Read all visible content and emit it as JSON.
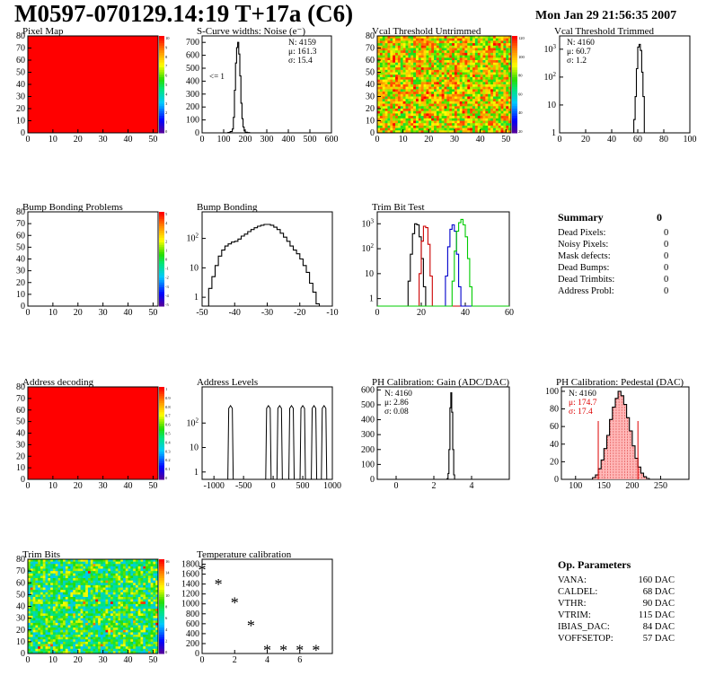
{
  "header": {
    "title": "M0597-070129.14:19 T+17a (C6)",
    "date": "Mon Jan 29 21:56:35 2007"
  },
  "colors": {
    "red": "#ff0000",
    "pedestal_fill": "#ffb0b0"
  },
  "chart_data": [
    {
      "id": "pixel-map",
      "type": "heatmap",
      "title": "Pixel Map",
      "xlim": [
        0,
        52
      ],
      "ylim": [
        0,
        80
      ],
      "xticks": [
        0,
        10,
        20,
        30,
        40,
        50
      ],
      "yticks": [
        0,
        10,
        20,
        30,
        40,
        50,
        60,
        70,
        80
      ],
      "fill": "uniform",
      "palette_max": 10,
      "palette_labels": [
        "10",
        "9",
        "8",
        "7",
        "6",
        "5",
        "4",
        "3",
        "2",
        "1",
        "0"
      ]
    },
    {
      "id": "scurve-noise",
      "type": "line",
      "title": "S-Curve widths: Noise (e⁻)",
      "xlim": [
        0,
        600
      ],
      "ylim": [
        0,
        750
      ],
      "ylog": false,
      "xticks": [
        0,
        100,
        200,
        300,
        400,
        500,
        600
      ],
      "yticks": [
        0,
        100,
        200,
        300,
        400,
        500,
        600,
        700
      ],
      "stats": [
        "N: 4159",
        "μ: 161.3",
        "σ: 15.4"
      ],
      "annotation": "<= 1",
      "series": [
        {
          "x": [
            0,
            110,
            120,
            130,
            140,
            145,
            150,
            155,
            160,
            165,
            170,
            175,
            180,
            185,
            190,
            195,
            200,
            210,
            220,
            600
          ],
          "values": [
            0,
            0,
            3,
            10,
            30,
            120,
            330,
            540,
            660,
            700,
            610,
            440,
            230,
            110,
            45,
            15,
            5,
            2,
            0,
            0
          ]
        }
      ]
    },
    {
      "id": "vcal-untrimmed",
      "type": "heatmap",
      "title": "Vcal Threshold Untrimmed",
      "xlim": [
        0,
        52
      ],
      "ylim": [
        0,
        80
      ],
      "xticks": [
        0,
        10,
        20,
        30,
        40,
        50
      ],
      "yticks": [
        0,
        10,
        20,
        30,
        40,
        50,
        60,
        70,
        80
      ],
      "fill": "noisy-high",
      "palette_max": 120,
      "palette_labels": [
        "120",
        "100",
        "80",
        "60",
        "40",
        "20"
      ]
    },
    {
      "id": "vcal-trimmed",
      "type": "line",
      "title": "Vcal Threshold Trimmed",
      "xlim": [
        0,
        100
      ],
      "ylim": [
        1,
        3000
      ],
      "ylog": true,
      "xticks": [
        0,
        20,
        40,
        60,
        80,
        100
      ],
      "yticks": [
        1,
        10,
        100,
        1000
      ],
      "stats": [
        "N: 4160",
        "μ: 60.7",
        "σ: 1.2"
      ],
      "series": [
        {
          "x": [
            0,
            55,
            57,
            58,
            59,
            60,
            61,
            62,
            63,
            64,
            65,
            100
          ],
          "values": [
            1,
            1,
            3,
            20,
            200,
            1200,
            1500,
            900,
            150,
            20,
            1,
            1
          ]
        }
      ]
    },
    {
      "id": "bump-bonding-problems",
      "type": "heatmap",
      "title": "Bump Bonding Problems",
      "xlim": [
        0,
        52
      ],
      "ylim": [
        0,
        80
      ],
      "xticks": [
        0,
        10,
        20,
        30,
        40,
        50
      ],
      "yticks": [
        0,
        10,
        20,
        30,
        40,
        50,
        60,
        70,
        80
      ],
      "fill": "empty",
      "palette_max": 5,
      "palette_labels": [
        "5",
        "4",
        "3",
        "2",
        "1",
        "0",
        "-1",
        "-2",
        "-3",
        "-4",
        "-5"
      ]
    },
    {
      "id": "bump-bonding",
      "type": "line",
      "title": "Bump Bonding",
      "xlim": [
        -50,
        -10
      ],
      "ylim": [
        0.5,
        800
      ],
      "ylog": true,
      "xticks": [
        -50,
        -40,
        -30,
        -20,
        -10
      ],
      "yticks": [
        1,
        10,
        100
      ],
      "series": [
        {
          "x": [
            -49,
            -48,
            -47,
            -46,
            -45,
            -44,
            -43,
            -42,
            -41,
            -40,
            -39,
            -38,
            -37,
            -36,
            -35,
            -34,
            -33,
            -32,
            -31,
            -30,
            -29,
            -28,
            -27,
            -26,
            -25,
            -24,
            -23,
            -22,
            -21,
            -20,
            -19,
            -18,
            -17,
            -16,
            -15,
            -14
          ],
          "values": [
            0.5,
            2,
            5,
            12,
            25,
            40,
            55,
            65,
            75,
            80,
            95,
            120,
            140,
            170,
            200,
            230,
            260,
            280,
            300,
            300,
            280,
            240,
            200,
            150,
            110,
            80,
            55,
            40,
            30,
            20,
            12,
            7,
            3,
            1.5,
            0.6,
            0.5
          ]
        }
      ]
    },
    {
      "id": "trim-bit-test",
      "type": "line",
      "title": "Trim Bit Test",
      "xlim": [
        0,
        60
      ],
      "ylim": [
        0.5,
        3000
      ],
      "ylog": true,
      "xticks": [
        0,
        20,
        40,
        60
      ],
      "yticks": [
        1,
        10,
        100,
        1000
      ],
      "series": [
        {
          "color": "#000000",
          "x": [
            0,
            13,
            14,
            15,
            16,
            17,
            18,
            19,
            20,
            21,
            22,
            60
          ],
          "values": [
            0.5,
            0.5,
            5,
            60,
            400,
            1000,
            900,
            300,
            40,
            3,
            0.5,
            0.5
          ]
        },
        {
          "color": "#cc0000",
          "x": [
            0,
            18,
            19,
            20,
            21,
            22,
            23,
            24,
            25,
            60
          ],
          "values": [
            0.5,
            0.5,
            10,
            200,
            800,
            700,
            150,
            8,
            0.5,
            0.5
          ]
        },
        {
          "color": "#0000cc",
          "x": [
            0,
            30,
            31,
            32,
            33,
            34,
            35,
            36,
            37,
            38,
            60
          ],
          "values": [
            0.5,
            0.5,
            8,
            120,
            600,
            900,
            500,
            60,
            3,
            0.5,
            0.5
          ]
        },
        {
          "color": "#00cc00",
          "x": [
            0,
            33,
            34,
            35,
            36,
            37,
            38,
            39,
            40,
            41,
            42,
            43,
            60
          ],
          "values": [
            0.5,
            0.5,
            5,
            80,
            500,
            1100,
            1500,
            900,
            300,
            40,
            3,
            0.5,
            0.5
          ]
        }
      ]
    },
    {
      "id": "address-decoding",
      "type": "heatmap",
      "title": "Address decoding",
      "xlim": [
        0,
        52
      ],
      "ylim": [
        0,
        80
      ],
      "xticks": [
        0,
        10,
        20,
        30,
        40,
        50
      ],
      "yticks": [
        0,
        10,
        20,
        30,
        40,
        50,
        60,
        70,
        80
      ],
      "fill": "uniform",
      "palette_max": 1,
      "palette_labels": [
        "1",
        "0.9",
        "0.8",
        "0.7",
        "0.6",
        "0.5",
        "0.4",
        "0.3",
        "0.2",
        "0.1",
        "0"
      ]
    },
    {
      "id": "address-levels",
      "type": "line",
      "title": "Address Levels",
      "xlim": [
        -1200,
        1000
      ],
      "ylim": [
        0.5,
        3000
      ],
      "ylog": true,
      "xticks": [
        -1000,
        -500,
        0,
        500,
        1000
      ],
      "yticks": [
        1,
        10,
        100
      ],
      "peaks_x": [
        -720,
        -80,
        110,
        310,
        500,
        690,
        860
      ],
      "peak_height": 400
    },
    {
      "id": "ph-gain",
      "type": "line",
      "title": "PH Calibration: Gain (ADC/DAC)",
      "xlim": [
        -1,
        6
      ],
      "ylim": [
        0,
        620
      ],
      "ylog": false,
      "xticks": [
        0,
        2,
        4
      ],
      "yticks": [
        0,
        100,
        200,
        300,
        400,
        500,
        600
      ],
      "stats": [
        "N: 4160",
        "μ: 2.86",
        "σ: 0.08"
      ],
      "series": [
        {
          "x": [
            -1,
            2.6,
            2.7,
            2.75,
            2.8,
            2.85,
            2.9,
            2.95,
            3.0,
            3.05,
            3.1,
            6
          ],
          "values": [
            0,
            0,
            5,
            40,
            200,
            480,
            580,
            450,
            200,
            30,
            0,
            0
          ]
        }
      ]
    },
    {
      "id": "ph-pedestal",
      "type": "line",
      "title": "PH Calibration: Pedestal (DAC)",
      "xlim": [
        75,
        300
      ],
      "ylim": [
        0,
        105
      ],
      "ylog": false,
      "xticks": [
        100,
        150,
        200,
        250
      ],
      "yticks": [
        0,
        20,
        40,
        60,
        80,
        100
      ],
      "stats": [
        "N: 4160",
        "μ: 174.7",
        "σ: 17.4"
      ],
      "cut_lines_x": [
        140,
        210
      ],
      "series": [
        {
          "x": [
            75,
            125,
            130,
            135,
            140,
            145,
            150,
            155,
            160,
            165,
            170,
            175,
            180,
            185,
            190,
            195,
            200,
            205,
            210,
            215,
            220,
            225,
            230,
            300
          ],
          "values": [
            0,
            0,
            2,
            5,
            12,
            22,
            35,
            50,
            68,
            82,
            92,
            100,
            95,
            85,
            70,
            55,
            38,
            24,
            14,
            7,
            3,
            1,
            0,
            0
          ]
        }
      ]
    },
    {
      "id": "trim-bits",
      "type": "heatmap",
      "title": "Trim Bits",
      "xlim": [
        0,
        52
      ],
      "ylim": [
        0,
        80
      ],
      "xticks": [
        0,
        10,
        20,
        30,
        40,
        50
      ],
      "yticks": [
        0,
        10,
        20,
        30,
        40,
        50,
        60,
        70,
        80
      ],
      "fill": "noisy-mid",
      "palette_max": 16,
      "palette_labels": [
        "16",
        "14",
        "12",
        "10",
        "8",
        "6",
        "4",
        "2",
        "0"
      ]
    },
    {
      "id": "temperature-calibration",
      "type": "scatter",
      "title": "Temperature calibration",
      "xlim": [
        0,
        8
      ],
      "ylim": [
        0,
        1900
      ],
      "ylog": false,
      "xticks": [
        0,
        2,
        4,
        6
      ],
      "yticks": [
        0,
        200,
        400,
        600,
        800,
        1000,
        1200,
        1400,
        1600,
        1800
      ],
      "series": [
        {
          "x": [
            0,
            1,
            2,
            3,
            4,
            5,
            6,
            7
          ],
          "values": [
            1680,
            1390,
            1020,
            560,
            60,
            60,
            60,
            60
          ]
        }
      ]
    }
  ],
  "summary": {
    "title": "Summary",
    "value": "0",
    "rows": [
      {
        "label": "Dead Pixels:",
        "value": "0"
      },
      {
        "label": "Noisy Pixels:",
        "value": "0"
      },
      {
        "label": "Mask defects:",
        "value": "0"
      },
      {
        "label": "Dead Bumps:",
        "value": "0"
      },
      {
        "label": "Dead Trimbits:",
        "value": "0"
      },
      {
        "label": "Address Probl:",
        "value": "0"
      }
    ]
  },
  "op_params": {
    "title": "Op. Parameters",
    "rows": [
      {
        "label": "VANA:",
        "value": "160 DAC"
      },
      {
        "label": "CALDEL:",
        "value": "68 DAC"
      },
      {
        "label": "VTHR:",
        "value": "90 DAC"
      },
      {
        "label": "VTRIM:",
        "value": "115 DAC"
      },
      {
        "label": "IBIAS_DAC:",
        "value": "84 DAC"
      },
      {
        "label": "VOFFSETOP:",
        "value": "57 DAC"
      }
    ]
  }
}
